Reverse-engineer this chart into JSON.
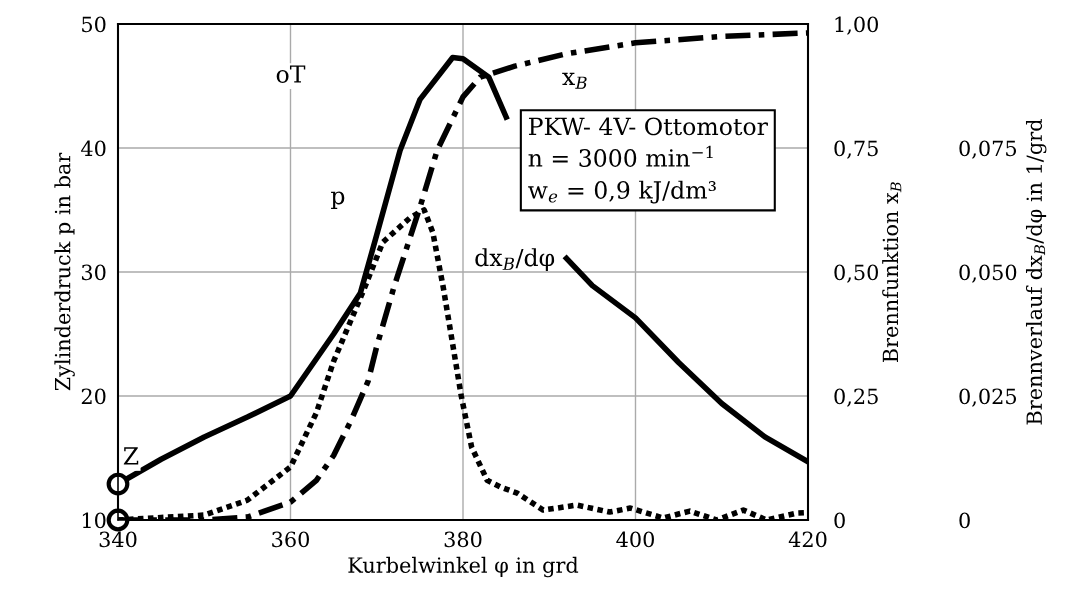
{
  "chart_data": {
    "type": "line",
    "xlabel": "Kurbelwinkel φ in grd",
    "ylabel": "Zylinderdruck p in bar",
    "y2label": "Brennfunktion x$_{B}$",
    "y3label": "Brennverlauf dx$_{B}$/dφ in 1/grd",
    "xlim": [
      340,
      420
    ],
    "xticks": [
      340,
      360,
      380,
      400,
      420
    ],
    "ylim": [
      10,
      50
    ],
    "yticks": [
      10,
      20,
      30,
      40,
      50
    ],
    "y2lim": [
      0,
      1
    ],
    "y2ticks": [
      {
        "value": 0,
        "label": "0"
      },
      {
        "value": 0.25,
        "label": "0,25"
      },
      {
        "value": 0.5,
        "label": "0,50"
      },
      {
        "value": 0.75,
        "label": "0,75"
      },
      {
        "value": 1,
        "label": "1,00"
      }
    ],
    "y3lim": [
      0,
      0.1
    ],
    "y3ticks": [
      {
        "value": 0,
        "label": "0"
      },
      {
        "value": 0.025,
        "label": "0,025"
      },
      {
        "value": 0.05,
        "label": "0,050"
      },
      {
        "value": 0.075,
        "label": "0,075"
      }
    ],
    "grid": true,
    "series": [
      {
        "axis": "y",
        "color": "#000000",
        "line_style": "solid",
        "x": [
          340,
          345,
          350,
          355,
          360,
          365,
          368.1,
          370,
          372.7,
          375,
          378.8,
          380,
          383,
          385,
          388,
          392,
          395,
          400,
          405,
          410,
          415,
          420
        ],
        "values": [
          12.9,
          14.9,
          16.7,
          18.3,
          20,
          25,
          28.3,
          33,
          39.8,
          43.9,
          47.3,
          47.2,
          45.7,
          42.5,
          null,
          31.1,
          28.9,
          26.3,
          22.7,
          19.4,
          16.7,
          14.7
        ]
      },
      {
        "axis": "y2",
        "color": "#000000",
        "line_style": "dashdot",
        "x": [
          340,
          345,
          350,
          355,
          360,
          363,
          365,
          367,
          369,
          370,
          372,
          375,
          377,
          380,
          382,
          386,
          392,
          400,
          410,
          420
        ],
        "values": [
          0,
          0,
          0,
          0.006,
          0.036,
          0.08,
          0.13,
          0.2,
          0.28,
          0.35,
          0.47,
          0.63,
          0.745,
          0.853,
          0.893,
          0.915,
          0.94,
          0.962,
          0.975,
          0.982
        ]
      },
      {
        "axis": "y3",
        "color": "#000000",
        "line_style": "dotted",
        "x": [
          340,
          345,
          350,
          355,
          360,
          363,
          365,
          368.4,
          370.7,
          373.9,
          375.5,
          376.5,
          377.7,
          379.8,
          381,
          382.8,
          384.3,
          386.3,
          389.3,
          393.2,
          397,
          399.4,
          403.2,
          406.3,
          409.4,
          412.5,
          415.2,
          418.7,
          420
        ],
        "values": [
          0,
          0.0005,
          0.001,
          0.004,
          0.0107,
          0.0216,
          0.032,
          0.046,
          0.056,
          0.061,
          0.0625,
          0.058,
          0.047,
          0.025,
          0.0147,
          0.008,
          0.0067,
          0.0054,
          0.002,
          0.003,
          0.0016,
          0.0024,
          0.0004,
          0.0018,
          0,
          0.002,
          0,
          0.0014,
          0.0015
        ]
      },
      {
        "type": "scatter",
        "axis": "y",
        "color": "#000000",
        "marker": "circle",
        "x": [
          340,
          340
        ],
        "values": [
          12.9,
          10
        ]
      }
    ],
    "annotations": [
      {
        "text": "oT",
        "x": 360,
        "y": 45.8
      },
      {
        "text": "Z",
        "x": 341.5,
        "y": 15
      },
      {
        "text": "p",
        "x": 365.5,
        "y": 36
      },
      {
        "text": "x$_{B}$",
        "x": 393,
        "y": 45.6
      },
      "dx$_{B}$/dφ",
      "PKW- 4V- Ottomotor\nn = 3000 min$^{−1}$\nw$_{e}$ = 0,9 kJ/dm³"
    ]
  }
}
